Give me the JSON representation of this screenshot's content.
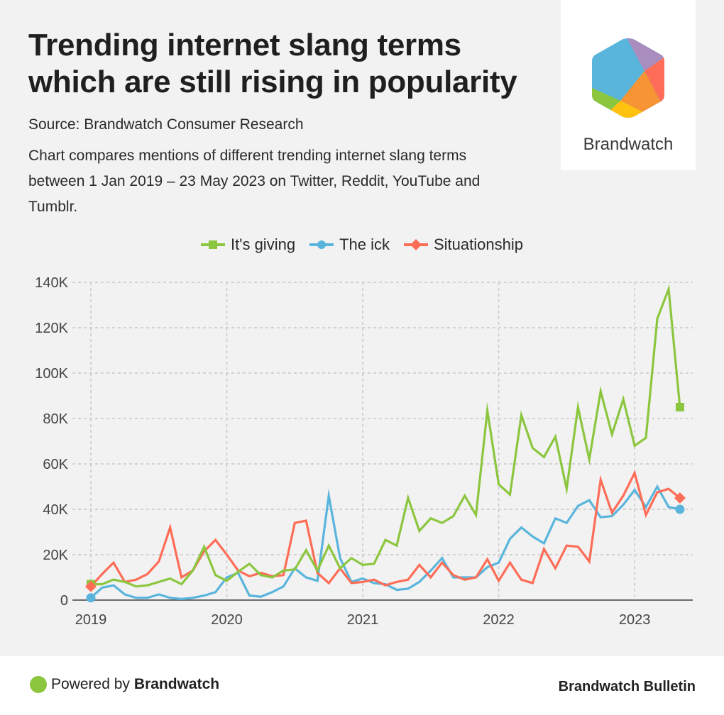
{
  "header": {
    "title": "Trending internet slang terms which are still rising in popularity",
    "source": "Source: Brandwatch Consumer Research",
    "description": "Chart compares mentions of different trending internet slang terms between 1 Jan 2019 – 23 May 2023 on Twitter, Reddit, YouTube and Tumblr.",
    "logo_text": "Brandwatch",
    "logo_icon": "brandwatch-hexagon-logo"
  },
  "colors": {
    "its_giving": "#8cc63f",
    "the_ick": "#5ab5dc",
    "situationship": "#fe6d57",
    "purple": "#a98dbf",
    "orange": "#f79433",
    "yellow": "#ffc20e"
  },
  "chart_data": {
    "type": "line",
    "title": "Trending internet slang terms which are still rising in popularity",
    "xlabel": "",
    "ylabel": "",
    "x_start": "2019-01",
    "x_interval": "monthly",
    "x_count": 53,
    "x_ticks": [
      "2019",
      "2020",
      "2021",
      "2022",
      "2023"
    ],
    "y_ticks": [
      "0",
      "20K",
      "40K",
      "60K",
      "80K",
      "100K",
      "120K",
      "140K"
    ],
    "ylim": [
      0,
      140000
    ],
    "grid": true,
    "legend_position": "top-center",
    "series": [
      {
        "name": "It's giving",
        "color": "#8cc63f",
        "marker": "square",
        "values": [
          7000,
          7000,
          9000,
          8000,
          6000,
          6500,
          8000,
          9500,
          7000,
          13000,
          23500,
          11000,
          8500,
          12500,
          16000,
          11000,
          10000,
          13000,
          13500,
          22000,
          13000,
          24000,
          14000,
          18500,
          15500,
          16000,
          26500,
          24000,
          45000,
          30500,
          36000,
          34000,
          37000,
          46000,
          37500,
          83500,
          51000,
          46500,
          81500,
          67000,
          63000,
          72000,
          49000,
          85000,
          62000,
          92000,
          73000,
          88500,
          68000,
          71500,
          124000,
          137000,
          85000
        ]
      },
      {
        "name": "The ick",
        "color": "#5ab5dc",
        "marker": "circle",
        "values": [
          1000,
          5500,
          6500,
          2500,
          1000,
          1000,
          2500,
          1000,
          500,
          1000,
          2000,
          3500,
          10000,
          12000,
          2000,
          1500,
          3500,
          6000,
          14000,
          10000,
          8500,
          46000,
          18500,
          8000,
          9500,
          7500,
          7000,
          4500,
          5000,
          8000,
          13000,
          18500,
          10000,
          10000,
          10000,
          14500,
          16500,
          27000,
          32000,
          28000,
          25000,
          36000,
          34000,
          41500,
          44000,
          36500,
          37000,
          42000,
          48500,
          41000,
          50000,
          41000,
          40000
        ]
      },
      {
        "name": "Situationship",
        "color": "#fe6d57",
        "marker": "diamond",
        "values": [
          6000,
          11500,
          16500,
          8000,
          9000,
          11500,
          17000,
          32000,
          10000,
          13000,
          21500,
          26500,
          20000,
          13000,
          10500,
          12000,
          10500,
          11000,
          34000,
          35000,
          12000,
          7500,
          14000,
          7500,
          8000,
          9000,
          6500,
          8000,
          9000,
          15500,
          10000,
          16500,
          11000,
          9000,
          10000,
          18000,
          8500,
          16500,
          9000,
          7500,
          22500,
          14000,
          24000,
          23500,
          17000,
          53000,
          38500,
          46000,
          56000,
          37500,
          47500,
          49000,
          45000
        ]
      }
    ]
  },
  "footer": {
    "powered_prefix": "Powered by",
    "powered_brand": "Brandwatch",
    "bulletin": "Brandwatch Bulletin"
  }
}
